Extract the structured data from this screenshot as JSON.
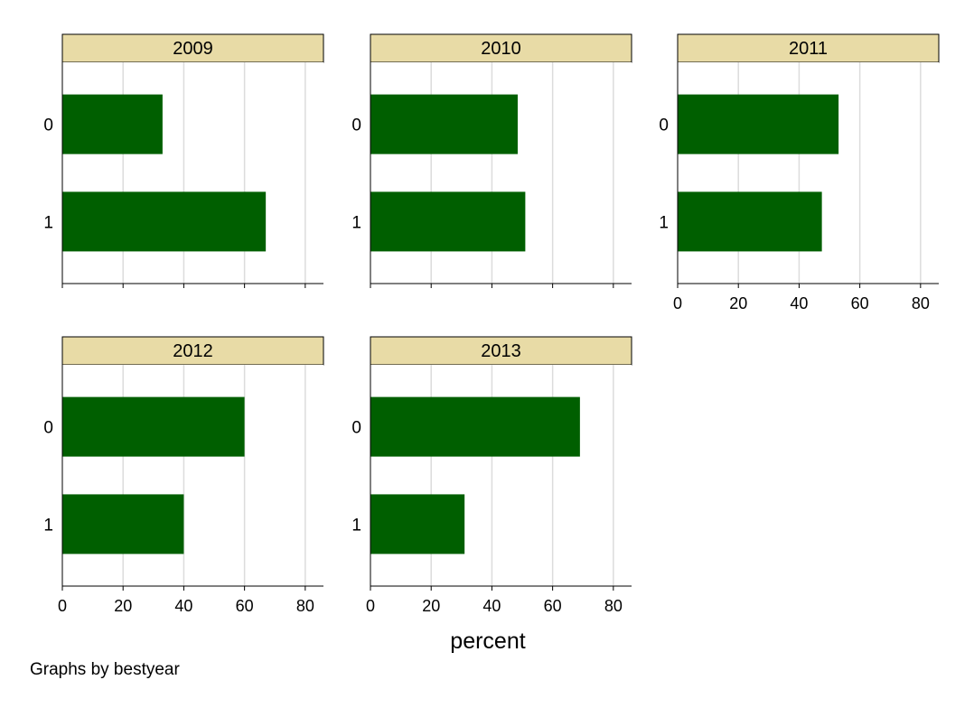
{
  "chart_data": {
    "type": "bar",
    "orientation": "horizontal",
    "categories": [
      "0",
      "1"
    ],
    "xlabel": "percent",
    "xlim": [
      0,
      86
    ],
    "xticks": [
      0,
      20,
      40,
      60,
      80
    ],
    "grid": true,
    "bar_color": "#005f00",
    "strip_color": "#e8dba6",
    "note": "Graphs by bestyear",
    "panels": [
      {
        "title": "2009",
        "values": [
          33,
          67
        ]
      },
      {
        "title": "2010",
        "values": [
          48.5,
          51
        ]
      },
      {
        "title": "2011",
        "values": [
          53,
          47.5
        ]
      },
      {
        "title": "2012",
        "values": [
          60,
          40
        ]
      },
      {
        "title": "2013",
        "values": [
          69,
          31
        ]
      }
    ]
  }
}
